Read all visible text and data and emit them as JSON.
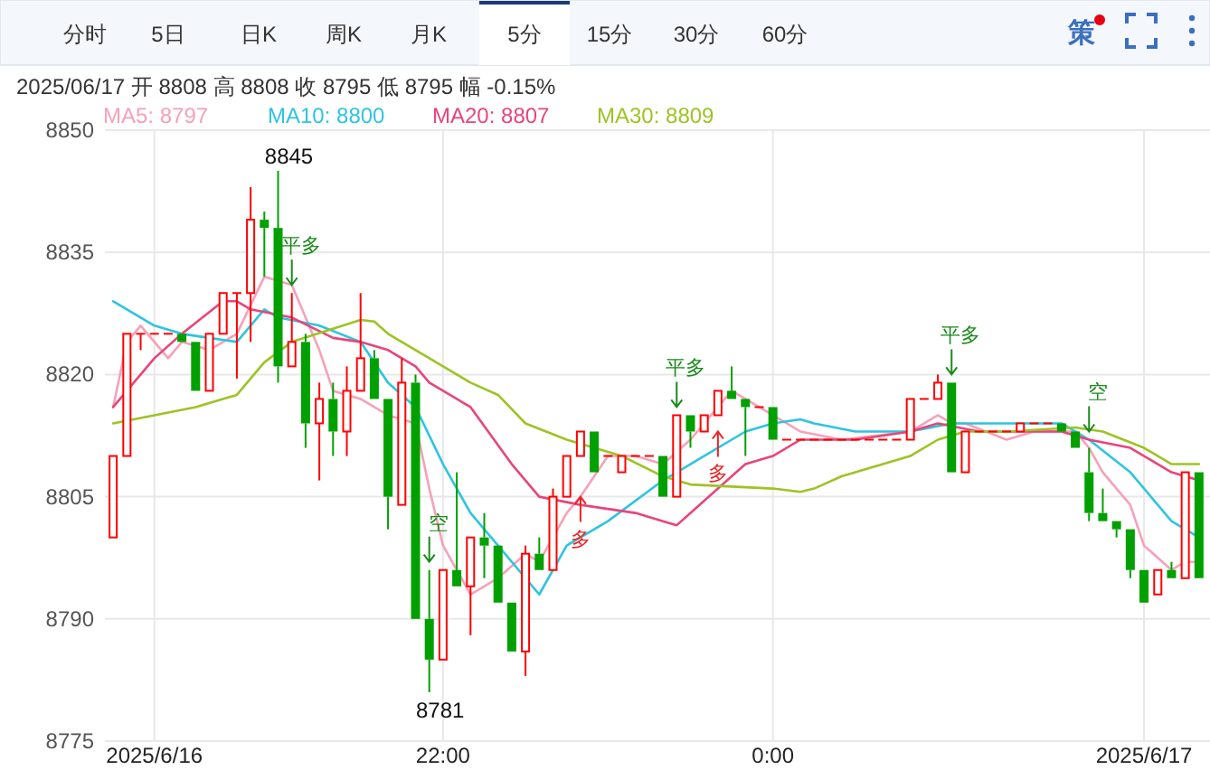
{
  "chart_data": {
    "type": "candlestick",
    "subtitle": "2025/06/17 开 8808 高 8808 收 8795 低 8795 幅 -0.15%",
    "x": [
      "2025-06-16T20:00",
      "2025-06-16T20:05",
      "2025-06-16T20:10",
      "2025-06-16T20:15",
      "2025-06-16T20:20",
      "2025-06-16T20:25",
      "2025-06-16T20:30",
      "2025-06-16T20:35",
      "2025-06-16T20:40",
      "2025-06-16T20:45",
      "2025-06-16T20:50",
      "2025-06-16T20:55",
      "2025-06-16T21:00",
      "2025-06-16T21:05",
      "2025-06-16T21:10",
      "2025-06-16T21:15",
      "2025-06-16T21:20",
      "2025-06-16T21:25",
      "2025-06-16T21:30",
      "2025-06-16T21:35",
      "2025-06-16T21:40",
      "2025-06-16T21:45",
      "2025-06-16T21:50",
      "2025-06-16T21:55",
      "2025-06-16T22:00",
      "2025-06-16T22:05",
      "2025-06-16T22:10",
      "2025-06-16T22:15",
      "2025-06-16T22:20",
      "2025-06-16T22:25",
      "2025-06-16T22:30",
      "2025-06-16T22:35",
      "2025-06-16T22:40",
      "2025-06-16T22:45",
      "2025-06-16T22:50",
      "2025-06-16T22:55",
      "2025-06-16T23:00",
      "2025-06-16T23:05",
      "2025-06-16T23:10",
      "2025-06-16T23:15",
      "2025-06-16T23:20",
      "2025-06-16T23:25",
      "2025-06-16T23:30",
      "2025-06-16T23:35",
      "2025-06-16T23:40",
      "2025-06-16T23:45",
      "2025-06-16T23:50",
      "2025-06-16T23:55",
      "2025-06-17T00:00",
      "2025-06-17T00:05",
      "2025-06-17T00:10",
      "2025-06-17T00:15",
      "2025-06-17T00:20",
      "2025-06-17T00:25",
      "2025-06-17T00:30",
      "2025-06-17T00:35",
      "2025-06-17T00:40",
      "2025-06-17T00:45",
      "2025-06-17T00:50",
      "2025-06-17T00:55",
      "2025-06-17T01:00",
      "2025-06-17T01:05",
      "2025-06-17T01:10",
      "2025-06-17T01:15",
      "2025-06-17T01:20",
      "2025-06-17T01:25",
      "2025-06-17T01:30",
      "2025-06-17T01:35",
      "2025-06-17T01:40",
      "2025-06-17T01:45",
      "2025-06-17T01:50",
      "2025-06-17T01:55",
      "2025-06-17T02:00",
      "2025-06-17T02:05",
      "2025-06-17T02:10",
      "2025-06-17T02:15",
      "2025-06-17T02:20",
      "2025-06-17T02:25",
      "2025-06-17T02:30",
      "2025-06-17T02:35"
    ],
    "ohlc": [
      [
        8800,
        8810,
        8800,
        8810
      ],
      [
        8810,
        8825,
        8810,
        8825
      ],
      [
        8825,
        8825,
        8823,
        8825
      ],
      [
        8825,
        8825,
        8825,
        8825
      ],
      [
        8825,
        8825,
        8825,
        8825
      ],
      [
        8825,
        8825,
        8824,
        8824
      ],
      [
        8824,
        8824,
        8818,
        8818
      ],
      [
        8818,
        8825,
        8818,
        8825
      ],
      [
        8825,
        8830,
        8825,
        8830
      ],
      [
        8830,
        8830,
        8819.5,
        8830
      ],
      [
        8830,
        8843,
        8824,
        8839
      ],
      [
        8839,
        8840,
        8832,
        8838
      ],
      [
        8838,
        8845,
        8819,
        8821
      ],
      [
        8821,
        8830,
        8821,
        8824
      ],
      [
        8824,
        8825,
        8811,
        8814
      ],
      [
        8814,
        8819,
        8807,
        8817
      ],
      [
        8817,
        8819,
        8810,
        8813
      ],
      [
        8813,
        8821,
        8810,
        8818
      ],
      [
        8818,
        8830,
        8818,
        8822
      ],
      [
        8822,
        8823,
        8817,
        8817
      ],
      [
        8817,
        8817,
        8801,
        8805
      ],
      [
        8804,
        8822,
        8804,
        8819
      ],
      [
        8819,
        8820,
        8790,
        8790
      ],
      [
        8790,
        8796,
        8781,
        8785
      ],
      [
        8785,
        8796,
        8785,
        8796
      ],
      [
        8796,
        8808,
        8794,
        8794
      ],
      [
        8794,
        8800,
        8788,
        8800
      ],
      [
        8800,
        8803,
        8795,
        8799
      ],
      [
        8799,
        8799,
        8792,
        8792
      ],
      [
        8792,
        8792,
        8786,
        8786
      ],
      [
        8786,
        8799,
        8783,
        8798
      ],
      [
        8798,
        8800,
        8796,
        8796
      ],
      [
        8796,
        8806,
        8796,
        8805
      ],
      [
        8805,
        8810,
        8805,
        8810
      ],
      [
        8810,
        8813,
        8810,
        8813
      ],
      [
        8813,
        8813,
        8808,
        8808
      ],
      [
        8810,
        8810,
        8810,
        8810
      ],
      [
        8808,
        8810,
        8808,
        8810
      ],
      [
        8810,
        8810,
        8810,
        8810
      ],
      [
        8810,
        8810,
        8810,
        8810
      ],
      [
        8810,
        8810,
        8805,
        8805
      ],
      [
        8805,
        8815,
        8805,
        8815
      ],
      [
        8815,
        8815,
        8811,
        8813
      ],
      [
        8813,
        8815,
        8813,
        8815
      ],
      [
        8815,
        8818,
        8815,
        8818
      ],
      [
        8818,
        8821,
        8817,
        8817
      ],
      [
        8817,
        8817,
        8810,
        8816
      ],
      [
        8816,
        8816,
        8816,
        8816
      ],
      [
        8816,
        8816,
        8812,
        8812
      ],
      [
        8812,
        8812,
        8812,
        8812
      ],
      [
        8812,
        8812,
        8812,
        8812
      ],
      [
        8812,
        8812,
        8812,
        8812
      ],
      [
        8812,
        8812,
        8812,
        8812
      ],
      [
        8812,
        8812,
        8812,
        8812
      ],
      [
        8812,
        8812,
        8812,
        8812
      ],
      [
        8812,
        8812,
        8812,
        8812
      ],
      [
        8812,
        8812,
        8812,
        8812
      ],
      [
        8812,
        8812,
        8812,
        8812
      ],
      [
        8812,
        8817,
        8812,
        8817
      ],
      [
        8817,
        8817,
        8817,
        8817
      ],
      [
        8817,
        8820,
        8817,
        8819
      ],
      [
        8819,
        8819,
        8808,
        8808
      ],
      [
        8808,
        8813,
        8808,
        8813
      ],
      [
        8813,
        8813,
        8813,
        8813
      ],
      [
        8813,
        8813,
        8813,
        8813
      ],
      [
        8813,
        8813,
        8813,
        8813
      ],
      [
        8813,
        8814,
        8813,
        8814
      ],
      [
        8814,
        8814,
        8814,
        8814
      ],
      [
        8814,
        8814,
        8814,
        8814
      ],
      [
        8814,
        8814,
        8813,
        8813
      ],
      [
        8813,
        8813,
        8811,
        8811
      ],
      [
        8808,
        8811,
        8802,
        8803
      ],
      [
        8803,
        8806,
        8802,
        8802
      ],
      [
        8802,
        8802,
        8800,
        8801
      ],
      [
        8801,
        8801,
        8795,
        8796
      ],
      [
        8796,
        8796,
        8792,
        8792
      ],
      [
        8793,
        8796,
        8793,
        8796
      ],
      [
        8796,
        8797,
        8795,
        8795
      ],
      [
        8795,
        8808,
        8795,
        8808
      ],
      [
        8808,
        8808,
        8795,
        8795
      ]
    ],
    "xlim": [
      "2025-06-16T19:57",
      "2025-06-17T02:39"
    ],
    "xticks": [
      {
        "value": "2025-06-16T20:15",
        "label": "2025/6/16"
      },
      {
        "value": "2025-06-16T22:00",
        "label": "22:00"
      },
      {
        "value": "2025-06-17T00:00",
        "label": "0:00"
      },
      {
        "value": "2025-06-17T02:15",
        "label": "2025/6/17"
      }
    ],
    "ylim": [
      8775,
      8850
    ],
    "yticks": [
      8775,
      8790,
      8805,
      8820,
      8835,
      8850
    ],
    "grid": true,
    "legend": "top left",
    "series": [
      {
        "name": "MA5: 8797",
        "color": "#f7a1b8",
        "type": "line",
        "x": [
          "2025-06-16T20:00",
          "2025-06-16T20:05",
          "2025-06-16T20:10",
          "2025-06-16T20:20",
          "2025-06-16T20:25",
          "2025-06-16T20:35",
          "2025-06-16T20:45",
          "2025-06-16T20:55",
          "2025-06-16T21:05",
          "2025-06-16T21:15",
          "2025-06-16T21:20",
          "2025-06-16T21:30",
          "2025-06-16T21:40",
          "2025-06-16T21:50",
          "2025-06-16T21:55",
          "2025-06-16T22:00",
          "2025-06-16T22:10",
          "2025-06-16T22:20",
          "2025-06-16T22:30",
          "2025-06-16T22:35",
          "2025-06-16T22:45",
          "2025-06-16T22:50",
          "2025-06-16T23:00",
          "2025-06-16T23:10",
          "2025-06-16T23:20",
          "2025-06-16T23:30",
          "2025-06-16T23:40",
          "2025-06-16T23:45",
          "2025-06-16T23:55",
          "2025-06-17T00:05",
          "2025-06-17T00:10",
          "2025-06-17T00:25",
          "2025-06-17T00:50",
          "2025-06-17T01:00",
          "2025-06-17T01:05",
          "2025-06-17T01:10",
          "2025-06-17T01:25",
          "2025-06-17T01:35",
          "2025-06-17T01:50",
          "2025-06-17T01:55",
          "2025-06-17T02:00",
          "2025-06-17T02:10",
          "2025-06-17T02:15",
          "2025-06-17T02:25",
          "2025-06-17T02:30",
          "2025-06-17T02:35"
        ],
        "values": [
          8816,
          8824,
          8826,
          8822,
          8824,
          8823,
          8825,
          8832,
          8831,
          8823,
          8818,
          8817,
          8815,
          8814,
          8806,
          8799,
          8793,
          8795,
          8798,
          8797,
          8803,
          8805,
          8810,
          8810,
          8809,
          8812,
          8816,
          8818,
          8816,
          8814,
          8813,
          8812,
          8813,
          8815,
          8814,
          8814,
          8812,
          8813,
          8813,
          8811,
          8808,
          8804,
          8799,
          8796,
          8797,
          8797
        ]
      },
      {
        "name": "MA10: 8800",
        "color": "#2ec4e0",
        "type": "line",
        "x": [
          "2025-06-16T20:00",
          "2025-06-16T20:15",
          "2025-06-16T20:25",
          "2025-06-16T20:35",
          "2025-06-16T20:45",
          "2025-06-16T20:55",
          "2025-06-16T21:00",
          "2025-06-16T21:15",
          "2025-06-16T21:30",
          "2025-06-16T21:40",
          "2025-06-16T21:50",
          "2025-06-16T22:00",
          "2025-06-16T22:10",
          "2025-06-16T22:20",
          "2025-06-16T22:35",
          "2025-06-16T22:45",
          "2025-06-16T23:00",
          "2025-06-16T23:20",
          "2025-06-16T23:30",
          "2025-06-16T23:50",
          "2025-06-17T00:00",
          "2025-06-17T00:10",
          "2025-06-17T00:15",
          "2025-06-17T00:30",
          "2025-06-17T00:50",
          "2025-06-17T01:05",
          "2025-06-17T01:30",
          "2025-06-17T01:45",
          "2025-06-17T01:55",
          "2025-06-17T02:10",
          "2025-06-17T02:25",
          "2025-06-17T02:35"
        ],
        "values": [
          8829,
          8826,
          8825,
          8824.5,
          8824,
          8828,
          8827,
          8826,
          8824,
          8819,
          8816,
          8809,
          8803,
          8799,
          8793,
          8799,
          8802,
          8807,
          8809,
          8813,
          8814,
          8814.5,
          8814,
          8813,
          8813,
          8814,
          8814,
          8814,
          8812,
          8808,
          8802,
          8800
        ]
      },
      {
        "name": "MA20: 8807",
        "color": "#e8457a",
        "type": "line",
        "x": [
          "2025-06-16T20:00",
          "2025-06-16T20:15",
          "2025-06-16T20:25",
          "2025-06-16T20:40",
          "2025-06-16T20:45",
          "2025-06-16T20:50",
          "2025-06-16T21:05",
          "2025-06-16T21:20",
          "2025-06-16T21:30",
          "2025-06-16T21:40",
          "2025-06-16T21:50",
          "2025-06-16T21:55",
          "2025-06-16T22:10",
          "2025-06-16T22:25",
          "2025-06-16T22:35",
          "2025-06-16T22:50",
          "2025-06-16T23:10",
          "2025-06-16T23:20",
          "2025-06-16T23:25",
          "2025-06-16T23:40",
          "2025-06-16T23:50",
          "2025-06-17T00:00",
          "2025-06-17T00:10",
          "2025-06-17T00:30",
          "2025-06-17T00:50",
          "2025-06-17T01:00",
          "2025-06-17T01:15",
          "2025-06-17T01:35",
          "2025-06-17T01:45",
          "2025-06-17T01:55",
          "2025-06-17T02:10",
          "2025-06-17T02:25",
          "2025-06-17T02:35"
        ],
        "values": [
          8816,
          8822,
          8825,
          8829,
          8829,
          8828,
          8827,
          8824.5,
          8824,
          8823,
          8821,
          8819,
          8816,
          8809,
          8805,
          8804,
          8803,
          8802,
          8801.5,
          8806,
          8809,
          8810,
          8812,
          8812,
          8813,
          8814,
          8813,
          8813,
          8813,
          8812,
          8811,
          8808,
          8807
        ]
      },
      {
        "name": "MA30: 8809",
        "color": "#9dc324",
        "type": "line",
        "x": [
          "2025-06-16T20:00",
          "2025-06-16T20:15",
          "2025-06-16T20:30",
          "2025-06-16T20:45",
          "2025-06-16T20:55",
          "2025-06-16T21:05",
          "2025-06-16T21:30",
          "2025-06-16T21:35",
          "2025-06-16T21:40",
          "2025-06-16T21:50",
          "2025-06-16T21:55",
          "2025-06-16T22:10",
          "2025-06-16T22:20",
          "2025-06-16T22:30",
          "2025-06-16T22:45",
          "2025-06-16T23:05",
          "2025-06-16T23:20",
          "2025-06-16T23:30",
          "2025-06-17T00:00",
          "2025-06-17T00:10",
          "2025-06-17T00:15",
          "2025-06-17T00:25",
          "2025-06-17T00:40",
          "2025-06-17T00:50",
          "2025-06-17T01:00",
          "2025-06-17T01:10",
          "2025-06-17T01:25",
          "2025-06-17T01:50",
          "2025-06-17T02:00",
          "2025-06-17T02:15",
          "2025-06-17T02:25",
          "2025-06-17T02:35"
        ],
        "values": [
          8814,
          8815,
          8816,
          8817.5,
          8821.5,
          8824,
          8826.7,
          8826.5,
          8825,
          8823,
          8822,
          8819,
          8817.5,
          8814,
          8812,
          8810,
          8807.5,
          8806.5,
          8806,
          8805.6,
          8806,
          8807.5,
          8809,
          8810,
          8812,
          8813,
          8813,
          8813.5,
          8813,
          8811,
          8809,
          8809
        ]
      }
    ],
    "annotations": [
      "分时",
      "5日",
      "日K",
      "周K",
      "月K",
      "5分",
      "15分",
      "30分",
      "60分",
      "策",
      {
        "text": "8845",
        "x": "2025-06-16T21:00",
        "y": 8845
      },
      {
        "text": "8781",
        "x": "2025-06-16T21:55",
        "y": 8781
      },
      {
        "text": "平多",
        "x": "2025-06-16T21:05",
        "y": 8831
      },
      {
        "text": "平多",
        "x": "2025-06-16T23:25",
        "y": 8816
      },
      {
        "text": "平多",
        "x": "2025-06-17T01:05",
        "y": 8820
      },
      {
        "text": "空",
        "x": "2025-06-16T21:55",
        "y": 8797
      },
      {
        "text": "空",
        "x": "2025-06-17T01:55",
        "y": 8813
      },
      {
        "text": "多",
        "x": "2025-06-16T22:50",
        "y": 8805
      },
      {
        "text": "多",
        "x": "2025-06-16T23:40",
        "y": 8813
      }
    ]
  }
}
